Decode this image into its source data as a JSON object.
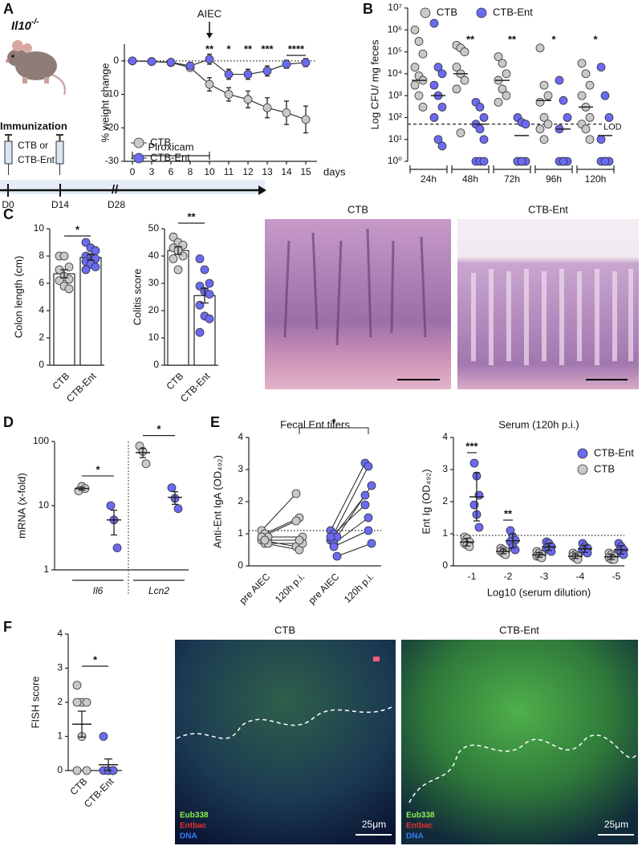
{
  "figure": {
    "panel_letters": [
      "A",
      "B",
      "C",
      "D",
      "E",
      "F"
    ],
    "mouse": {
      "gene": "Il10",
      "genotype": "-/-"
    },
    "timeline": {
      "title": "Immunization",
      "vaccine": [
        "CTB or",
        "CTB-Ent"
      ],
      "days": [
        "D0",
        "D14",
        "D28"
      ]
    },
    "histology": {
      "titles": [
        "CTB",
        "CTB-Ent"
      ]
    },
    "fish": {
      "titles": [
        "CTB",
        "CTB-Ent"
      ],
      "stains": [
        "Eub338",
        "Entbac",
        "DNA"
      ],
      "scale": "25μm"
    }
  },
  "chart_data": [
    {
      "type": "line",
      "y_label": "% weight change",
      "x_label": "days",
      "categories": [
        "0",
        "3",
        "6",
        "8",
        "10",
        "11",
        "12",
        "13",
        "14",
        "15"
      ],
      "ylim": [
        -30,
        5
      ],
      "yticks": [
        -30,
        -20,
        -10,
        0
      ],
      "ref_line": 0,
      "legend": "lower left",
      "annotations": {
        "event": "AIEC",
        "treatment": "Piroxicam"
      },
      "significance": [
        null,
        null,
        null,
        null,
        "**",
        "*",
        "**",
        "***",
        "****",
        null
      ],
      "series": [
        {
          "name": "CTB",
          "color": "#c9c9c9",
          "values": [
            0,
            -0.2,
            -0.5,
            -2,
            -7,
            -10,
            -11.5,
            -14,
            -15.5,
            -17.5
          ],
          "errors": [
            0.3,
            0.5,
            0.7,
            1,
            2,
            2,
            2.5,
            3,
            3.5,
            4
          ]
        },
        {
          "name": "CTB-Ent",
          "color": "#6a6af2",
          "values": [
            0,
            -0.2,
            -0.4,
            -1.5,
            0.5,
            -4,
            -4,
            -3,
            -1,
            -0.5
          ],
          "errors": [
            0.3,
            0.5,
            0.5,
            1,
            1.5,
            1.5,
            1.5,
            1.5,
            1.2,
            1.2
          ]
        }
      ]
    },
    {
      "type": "dot",
      "y_label": "Log CFU/ mg feces",
      "log_y": true,
      "categories": [
        "24h",
        "48h",
        "72h",
        "96h",
        "120h"
      ],
      "ylim": [
        1,
        10000000
      ],
      "yticks": [
        {
          "value": 1,
          "label": "10⁰"
        },
        {
          "value": 10,
          "label": "10¹"
        },
        {
          "value": 100,
          "label": "10²"
        },
        {
          "value": 1000,
          "label": "10³"
        },
        {
          "value": 10000,
          "label": "10⁴"
        },
        {
          "value": 100000,
          "label": "10⁵"
        },
        {
          "value": 1000000,
          "label": "10⁶"
        },
        {
          "value": 10000000,
          "label": "10⁷"
        }
      ],
      "ref_line": 50,
      "ref_label": "LOD",
      "legend": "top",
      "significance": [
        null,
        "**",
        "**",
        "*",
        "*"
      ],
      "series": [
        {
          "name": "CTB",
          "color": "#c9c9c9",
          "values": [
            [
              1000000,
              300000,
              80000,
              20000,
              8000,
              5000,
              3000,
              1000,
              300
            ],
            [
              200000,
              150000,
              100000,
              20000,
              10000,
              5000,
              2000,
              20
            ],
            [
              60000,
              30000,
              10000,
              5000,
              2000,
              1000,
              500
            ],
            [
              150000,
              3000,
              1000,
              500,
              100,
              50,
              30,
              10
            ],
            [
              30000,
              10000,
              3000,
              1000,
              300,
              100,
              50,
              30,
              10
            ]
          ],
          "centers": [
            5000,
            10000,
            5000,
            600,
            300
          ]
        },
        {
          "name": "CTB-Ent",
          "color": "#6a6af2",
          "values": [
            [
              2000000,
              20000,
              10000,
              3000,
              1000,
              300,
              100,
              10,
              5
            ],
            [
              500,
              300,
              100,
              50,
              30,
              10,
              1,
              1,
              1
            ],
            [
              100,
              60,
              50,
              1,
              1,
              1,
              1,
              1
            ],
            [
              5000,
              600,
              100,
              30,
              1,
              1,
              1,
              1
            ],
            [
              20000,
              1000,
              100,
              10,
              1,
              1,
              1,
              1
            ]
          ],
          "centers": [
            1000,
            50,
            15,
            30,
            15
          ]
        }
      ]
    },
    {
      "type": "dot",
      "y_label": "Colon length (cm)",
      "bars": true,
      "bar_color": "#ffffff",
      "categories": [
        "CTB",
        "CTB-Ent"
      ],
      "colors": [
        "#c9c9c9",
        "#6a6af2"
      ],
      "points": [
        [
          8.0,
          8.0,
          7.2,
          7.0,
          6.5,
          6.3,
          6.2,
          5.8,
          5.6
        ],
        [
          9.0,
          8.6,
          8.4,
          8.0,
          7.9,
          7.8,
          7.6,
          7.4,
          7.2,
          7.0
        ]
      ],
      "values": [
        6.7,
        7.9
      ],
      "errors": [
        0.3,
        0.2
      ],
      "ylim": [
        0,
        10
      ],
      "yticks": [
        0,
        2,
        4,
        6,
        8,
        10
      ],
      "significance": "*"
    },
    {
      "type": "dot",
      "y_label": "Colitis score",
      "bars": true,
      "bar_color": "#ffffff",
      "categories": [
        "CTB",
        "CTB-Ent"
      ],
      "colors": [
        "#c9c9c9",
        "#6a6af2"
      ],
      "points": [
        [
          47,
          45,
          44,
          43,
          42,
          40,
          39,
          35
        ],
        [
          39,
          35,
          30,
          29,
          27,
          26,
          22,
          18,
          17,
          12
        ]
      ],
      "values": [
        42,
        25.5
      ],
      "errors": [
        1.4,
        2.7
      ],
      "ylim": [
        0,
        50
      ],
      "yticks": [
        0,
        10,
        20,
        30,
        40,
        50
      ],
      "significance": "**"
    },
    {
      "type": "dot",
      "y_label": "mRNA (x-fold)",
      "log_y": true,
      "categories": [
        "Il6",
        "Lcn2"
      ],
      "ylim": [
        1,
        100
      ],
      "yticks": [
        1,
        10,
        100
      ],
      "significance": [
        "*",
        "*"
      ],
      "series": [
        {
          "color": "#c9c9c9",
          "values": [
            [
              17,
              20,
              18.5
            ],
            [
              85,
              70,
              45
            ]
          ],
          "centers": [
            18.5,
            67
          ],
          "errors": [
            1,
            11
          ]
        },
        {
          "color": "#6a6af2",
          "values": [
            [
              10,
              6,
              2.2
            ],
            [
              19,
              13,
              9
            ]
          ],
          "centers": [
            6,
            13.5
          ],
          "errors": [
            2.5,
            3
          ]
        }
      ]
    },
    {
      "type": "paired",
      "title": "Fecal Ent titers",
      "y_label": "Anti-Ent IgA (OD₄₉₂)",
      "categories": [
        "pre AIEC",
        "120h p.i.",
        "pre AIEC",
        "120h p.i."
      ],
      "colors": [
        "#c9c9c9",
        "#c9c9c9",
        "#6a6af2",
        "#6a6af2"
      ],
      "values": [
        [
          1.1,
          1.0,
          0.9,
          0.8,
          0.7,
          0.7,
          0.9,
          0.8
        ],
        [
          2.25,
          1.5,
          0.9,
          0.6,
          0.5,
          0.7,
          1.4,
          0.8
        ],
        [
          1.1,
          1.0,
          0.9,
          0.8,
          0.7,
          0.3,
          0.9,
          0.6
        ],
        [
          3.2,
          3.1,
          2.5,
          2.2,
          1.5,
          0.7,
          1.9,
          1.1
        ]
      ],
      "ylim": [
        0,
        4
      ],
      "yticks": [
        0,
        1,
        2,
        3,
        4
      ],
      "ref_line": 1.1,
      "significance": "*"
    },
    {
      "type": "dot",
      "title": "Serum (120h p.i.)",
      "x_label": "Log10 (serum dilution)",
      "y_label": "Ent Ig (OD₄₉₂)",
      "categories": [
        "-1",
        "-2",
        "-3",
        "-4",
        "-5"
      ],
      "ylim": [
        0,
        4
      ],
      "yticks": [
        0,
        1,
        2,
        3,
        4
      ],
      "ref_line": 0.95,
      "legend": "upper right",
      "significance": [
        "***",
        "**",
        null,
        null,
        null
      ],
      "series": [
        {
          "name": "CTB-Ent",
          "color": "#6a6af2",
          "values": [
            [
              3.2,
              2.8,
              2.2,
              1.9,
              1.6,
              1.2
            ],
            [
              1.1,
              0.9,
              0.8,
              0.75,
              0.6,
              0.5
            ],
            [
              0.75,
              0.7,
              0.6,
              0.55,
              0.5,
              0.45
            ],
            [
              0.7,
              0.6,
              0.55,
              0.5,
              0.45,
              0.4
            ],
            [
              0.7,
              0.6,
              0.5,
              0.45,
              0.4,
              0.35
            ]
          ],
          "centers": [
            2.15,
            0.78,
            0.59,
            0.53,
            0.5
          ],
          "errors": [
            0.75,
            0.22,
            0.11,
            0.11,
            0.13
          ]
        },
        {
          "name": "CTB",
          "color": "#c9c9c9",
          "values": [
            [
              0.9,
              0.85,
              0.75,
              0.7,
              0.65,
              0.6
            ],
            [
              0.55,
              0.5,
              0.45,
              0.45,
              0.4,
              0.35
            ],
            [
              0.45,
              0.4,
              0.35,
              0.3,
              0.3,
              0.25
            ],
            [
              0.4,
              0.35,
              0.3,
              0.3,
              0.25,
              0.2
            ],
            [
              0.4,
              0.35,
              0.3,
              0.25,
              0.2,
              0.2
            ]
          ],
          "centers": [
            0.74,
            0.45,
            0.34,
            0.3,
            0.28
          ],
          "errors": [
            0.12,
            0.07,
            0.07,
            0.07,
            0.08
          ]
        }
      ]
    },
    {
      "type": "dot",
      "y_label": "FISH score",
      "categories": [
        "CTB",
        "CTB-Ent"
      ],
      "colors": [
        "#c9c9c9",
        "#6a6af2"
      ],
      "points": [
        [
          2.5,
          2,
          2,
          2,
          1,
          0,
          0
        ],
        [
          1,
          0,
          0,
          0,
          0,
          0
        ]
      ],
      "values": [
        1.36,
        0.17
      ],
      "errors": [
        0.38,
        0.17
      ],
      "ylim": [
        0,
        4
      ],
      "yticks": [
        0,
        1,
        2,
        3,
        4
      ],
      "significance": "*"
    }
  ]
}
